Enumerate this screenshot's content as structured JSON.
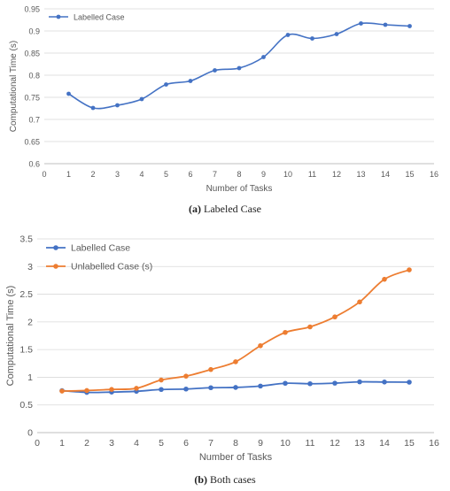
{
  "chart_data": [
    {
      "type": "line",
      "caption_label": "(a)",
      "caption_text": " Labeled Case",
      "xlabel": "Number of Tasks",
      "ylabel": "Computational Time (s)",
      "xlim": [
        0,
        16
      ],
      "ylim": [
        0.6,
        0.95
      ],
      "xticks": [
        0,
        1,
        2,
        3,
        4,
        5,
        6,
        7,
        8,
        9,
        10,
        11,
        12,
        13,
        14,
        15,
        16
      ],
      "yticks": [
        0.6,
        0.65,
        0.7,
        0.75,
        0.8,
        0.85,
        0.9,
        0.95
      ],
      "ytick_labels": [
        "0.6",
        "0.65",
        "0.7",
        "0.75",
        "0.8",
        "0.85",
        "0.9",
        "0.95"
      ],
      "grid": "horizontal",
      "legend_position": "top-left",
      "x": [
        1,
        2,
        3,
        4,
        5,
        6,
        7,
        8,
        9,
        10,
        11,
        12,
        13,
        14,
        15
      ],
      "series": [
        {
          "name": "Labelled Case",
          "color": "#4472C4",
          "values": [
            0.758,
            0.726,
            0.732,
            0.746,
            0.779,
            0.787,
            0.811,
            0.816,
            0.841,
            0.891,
            0.883,
            0.893,
            0.917,
            0.914,
            0.911
          ]
        }
      ]
    },
    {
      "type": "line",
      "caption_label": "(b)",
      "caption_text": " Both cases",
      "xlabel": "Number of Tasks",
      "ylabel": "Computational Time (s)",
      "xlim": [
        0,
        16
      ],
      "ylim": [
        0,
        3.5
      ],
      "xticks": [
        0,
        1,
        2,
        3,
        4,
        5,
        6,
        7,
        8,
        9,
        10,
        11,
        12,
        13,
        14,
        15,
        16
      ],
      "yticks": [
        0,
        0.5,
        1,
        1.5,
        2,
        2.5,
        3,
        3.5
      ],
      "ytick_labels": [
        "0",
        "0.5",
        "1",
        "1.5",
        "2",
        "2.5",
        "3",
        "3.5"
      ],
      "grid": "horizontal",
      "legend_position": "top-left",
      "x": [
        1,
        2,
        3,
        4,
        5,
        6,
        7,
        8,
        9,
        10,
        11,
        12,
        13,
        14,
        15
      ],
      "series": [
        {
          "name": "Labelled Case",
          "color": "#4472C4",
          "values": [
            0.758,
            0.726,
            0.732,
            0.746,
            0.779,
            0.787,
            0.811,
            0.816,
            0.841,
            0.891,
            0.883,
            0.893,
            0.917,
            0.914,
            0.911
          ]
        },
        {
          "name": "Unlabelled Case (s)",
          "color": "#ED7D31",
          "values": [
            0.75,
            0.76,
            0.78,
            0.8,
            0.95,
            1.02,
            1.14,
            1.28,
            1.57,
            1.81,
            1.91,
            2.09,
            2.36,
            2.77,
            2.94
          ]
        }
      ]
    }
  ]
}
